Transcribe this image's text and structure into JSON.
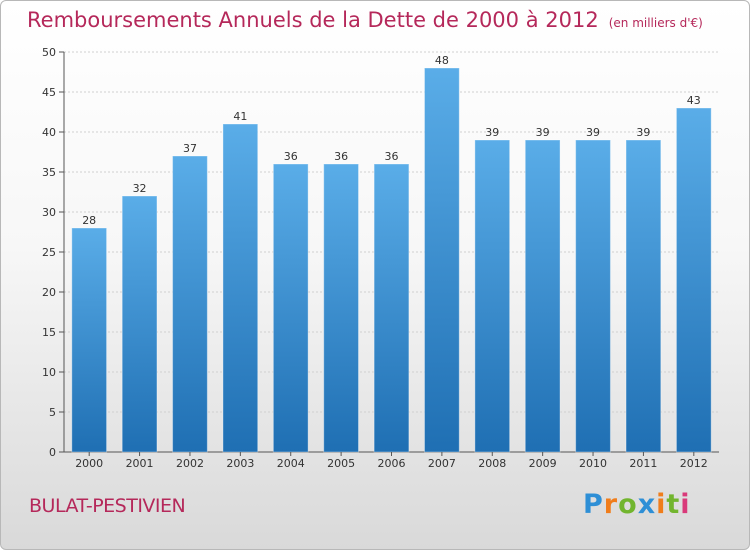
{
  "header": {
    "title": "Remboursements Annuels de la Dette de 2000 à 2012",
    "unit": "(en milliers d'€)"
  },
  "footer": {
    "commune": "BULAT-PESTIVIEN",
    "logo_text": "Proxiti"
  },
  "colors": {
    "title": "#b5285a",
    "bar_top": "#5aade8",
    "bar_bottom": "#1f6fb3",
    "grid": "#d0d0d0"
  },
  "chart_data": {
    "type": "bar",
    "title": "Remboursements Annuels de la Dette de 2000 à 2012",
    "xlabel": "",
    "ylabel": "",
    "categories": [
      "2000",
      "2001",
      "2002",
      "2003",
      "2004",
      "2005",
      "2006",
      "2007",
      "2008",
      "2009",
      "2010",
      "2011",
      "2012"
    ],
    "values": [
      28,
      32,
      37,
      41,
      36,
      36,
      36,
      48,
      39,
      39,
      39,
      39,
      43
    ],
    "ylim": [
      0,
      50
    ],
    "yticks": [
      0,
      5,
      10,
      15,
      20,
      25,
      30,
      35,
      40,
      45,
      50
    ],
    "grid": true,
    "legend": "none"
  }
}
